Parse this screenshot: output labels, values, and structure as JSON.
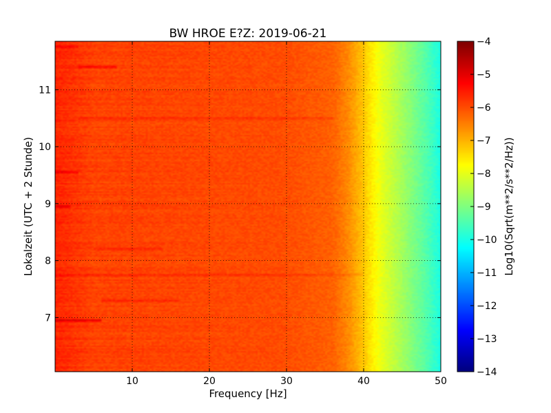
{
  "chart_data": {
    "type": "heatmap",
    "title": "BW HROE E?Z: 2019-06-21",
    "xlabel": "Frequency [Hz]",
    "ylabel": "Lokalzeit (UTC + 2 Stunde)",
    "xlim": [
      0,
      50
    ],
    "ylim": [
      11.85,
      6.05
    ],
    "x_ticks": [
      10,
      20,
      30,
      40,
      50
    ],
    "x_tick_labels": [
      "10",
      "20",
      "30",
      "40",
      "50"
    ],
    "y_ticks": [
      7,
      8,
      9,
      10,
      11
    ],
    "y_tick_labels": [
      "7",
      "8",
      "9",
      "10",
      "11"
    ],
    "grid": true,
    "colormap": "jet",
    "colorbar": {
      "label": "Log10(Sqrt(m**2/s**2/Hz))",
      "range": [
        -14,
        -4
      ],
      "ticks": [
        -4,
        -5,
        -6,
        -7,
        -8,
        -9,
        -10,
        -11,
        -12,
        -13,
        -14
      ],
      "tick_labels": [
        "−4",
        "−5",
        "−6",
        "−7",
        "−8",
        "−9",
        "−10",
        "−11",
        "−12",
        "−13",
        "−14"
      ]
    },
    "frequency_profile": {
      "frequency_hz": [
        0,
        5,
        10,
        20,
        30,
        36,
        38,
        40,
        42,
        44,
        46,
        48,
        50
      ],
      "log10_amplitude": [
        -5.6,
        -5.9,
        -5.9,
        -5.95,
        -6.0,
        -6.2,
        -6.6,
        -7.2,
        -7.9,
        -8.4,
        -8.9,
        -9.4,
        -10.0
      ]
    },
    "time_features": [
      {
        "time": 6.95,
        "freq_range": [
          0,
          6
        ],
        "delta": 1.0
      },
      {
        "time": 7.3,
        "freq_range": [
          6,
          16
        ],
        "delta": 0.35
      },
      {
        "time": 7.75,
        "freq_range": [
          0,
          40
        ],
        "delta": 0.3
      },
      {
        "time": 8.2,
        "freq_range": [
          5,
          14
        ],
        "delta": 0.35
      },
      {
        "time": 8.95,
        "freq_range": [
          0,
          2
        ],
        "delta": 0.7
      },
      {
        "time": 9.55,
        "freq_range": [
          0,
          3
        ],
        "delta": 0.6
      },
      {
        "time": 10.5,
        "freq_range": [
          3,
          36
        ],
        "delta": 0.35
      },
      {
        "time": 11.4,
        "freq_range": [
          3,
          8
        ],
        "delta": 0.55
      },
      {
        "time": 11.75,
        "freq_range": [
          0,
          3
        ],
        "delta": 0.4
      }
    ]
  }
}
